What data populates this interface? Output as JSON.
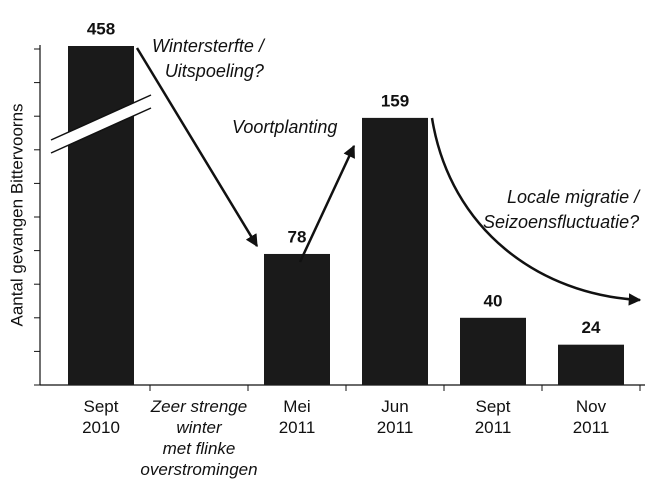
{
  "chart_data": {
    "type": "bar",
    "y_label": "Aantal gevangen Bittervoorns",
    "categories": [
      "Sept\n2010",
      "Zeer strenge\nwinter\nmet flinke\noverstromingen",
      "Mei\n2011",
      "Jun\n2011",
      "Sept\n2011",
      "Nov\n2011"
    ],
    "values": [
      458,
      null,
      78,
      159,
      40,
      24
    ],
    "color": "#1a1a1a",
    "ylim": [
      0,
      200
    ],
    "yticks": [
      0,
      20,
      40,
      60,
      80,
      100,
      120,
      140,
      160,
      180,
      200
    ],
    "axis_break": true,
    "annotations": [
      "Wintersterfte  /\nUitspoeling?",
      "Voortplanting",
      "Locale migratie /\nSeizoensfluctuatie?"
    ]
  }
}
